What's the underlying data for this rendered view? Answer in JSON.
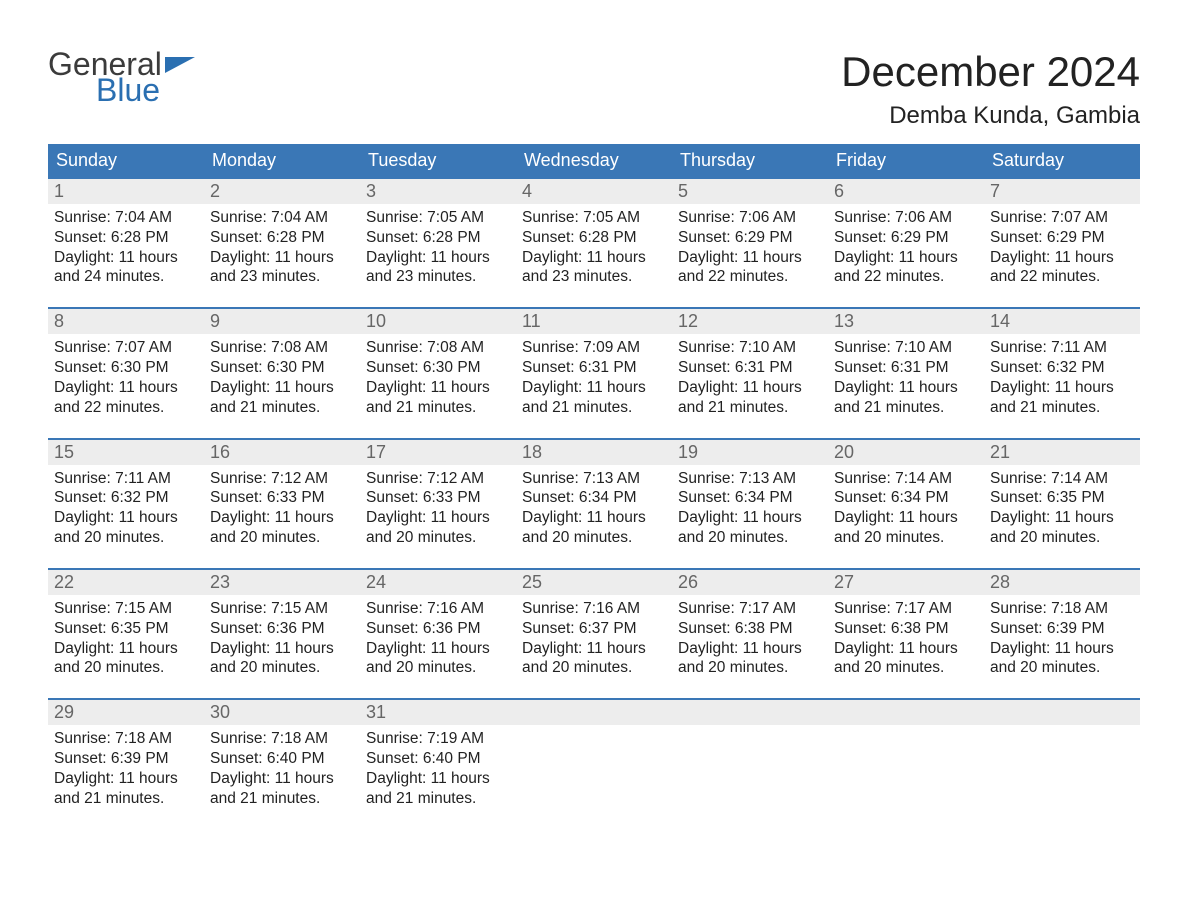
{
  "logo": {
    "text_general": "General",
    "text_blue": "Blue",
    "flag_color": "#2a6fb1",
    "general_color": "#3b3b3b"
  },
  "header": {
    "month_title": "December 2024",
    "location": "Demba Kunda, Gambia"
  },
  "styling": {
    "header_bg": "#3a77b6",
    "header_fg": "#ffffff",
    "daynum_bg": "#ededed",
    "daynum_fg": "#666666",
    "rule_color": "#3a77b6",
    "body_text_color": "#222222",
    "page_bg": "#ffffff",
    "month_title_fontsize": 42,
    "location_fontsize": 24,
    "weekday_fontsize": 18,
    "daynum_fontsize": 18,
    "body_fontsize": 15.5
  },
  "weekdays": [
    "Sunday",
    "Monday",
    "Tuesday",
    "Wednesday",
    "Thursday",
    "Friday",
    "Saturday"
  ],
  "labels": {
    "sunrise": "Sunrise:",
    "sunset": "Sunset:",
    "daylight": "Daylight:"
  },
  "days": [
    {
      "n": "1",
      "sunrise": "7:04 AM",
      "sunset": "6:28 PM",
      "daylight": "11 hours and 24 minutes."
    },
    {
      "n": "2",
      "sunrise": "7:04 AM",
      "sunset": "6:28 PM",
      "daylight": "11 hours and 23 minutes."
    },
    {
      "n": "3",
      "sunrise": "7:05 AM",
      "sunset": "6:28 PM",
      "daylight": "11 hours and 23 minutes."
    },
    {
      "n": "4",
      "sunrise": "7:05 AM",
      "sunset": "6:28 PM",
      "daylight": "11 hours and 23 minutes."
    },
    {
      "n": "5",
      "sunrise": "7:06 AM",
      "sunset": "6:29 PM",
      "daylight": "11 hours and 22 minutes."
    },
    {
      "n": "6",
      "sunrise": "7:06 AM",
      "sunset": "6:29 PM",
      "daylight": "11 hours and 22 minutes."
    },
    {
      "n": "7",
      "sunrise": "7:07 AM",
      "sunset": "6:29 PM",
      "daylight": "11 hours and 22 minutes."
    },
    {
      "n": "8",
      "sunrise": "7:07 AM",
      "sunset": "6:30 PM",
      "daylight": "11 hours and 22 minutes."
    },
    {
      "n": "9",
      "sunrise": "7:08 AM",
      "sunset": "6:30 PM",
      "daylight": "11 hours and 21 minutes."
    },
    {
      "n": "10",
      "sunrise": "7:08 AM",
      "sunset": "6:30 PM",
      "daylight": "11 hours and 21 minutes."
    },
    {
      "n": "11",
      "sunrise": "7:09 AM",
      "sunset": "6:31 PM",
      "daylight": "11 hours and 21 minutes."
    },
    {
      "n": "12",
      "sunrise": "7:10 AM",
      "sunset": "6:31 PM",
      "daylight": "11 hours and 21 minutes."
    },
    {
      "n": "13",
      "sunrise": "7:10 AM",
      "sunset": "6:31 PM",
      "daylight": "11 hours and 21 minutes."
    },
    {
      "n": "14",
      "sunrise": "7:11 AM",
      "sunset": "6:32 PM",
      "daylight": "11 hours and 21 minutes."
    },
    {
      "n": "15",
      "sunrise": "7:11 AM",
      "sunset": "6:32 PM",
      "daylight": "11 hours and 20 minutes."
    },
    {
      "n": "16",
      "sunrise": "7:12 AM",
      "sunset": "6:33 PM",
      "daylight": "11 hours and 20 minutes."
    },
    {
      "n": "17",
      "sunrise": "7:12 AM",
      "sunset": "6:33 PM",
      "daylight": "11 hours and 20 minutes."
    },
    {
      "n": "18",
      "sunrise": "7:13 AM",
      "sunset": "6:34 PM",
      "daylight": "11 hours and 20 minutes."
    },
    {
      "n": "19",
      "sunrise": "7:13 AM",
      "sunset": "6:34 PM",
      "daylight": "11 hours and 20 minutes."
    },
    {
      "n": "20",
      "sunrise": "7:14 AM",
      "sunset": "6:34 PM",
      "daylight": "11 hours and 20 minutes."
    },
    {
      "n": "21",
      "sunrise": "7:14 AM",
      "sunset": "6:35 PM",
      "daylight": "11 hours and 20 minutes."
    },
    {
      "n": "22",
      "sunrise": "7:15 AM",
      "sunset": "6:35 PM",
      "daylight": "11 hours and 20 minutes."
    },
    {
      "n": "23",
      "sunrise": "7:15 AM",
      "sunset": "6:36 PM",
      "daylight": "11 hours and 20 minutes."
    },
    {
      "n": "24",
      "sunrise": "7:16 AM",
      "sunset": "6:36 PM",
      "daylight": "11 hours and 20 minutes."
    },
    {
      "n": "25",
      "sunrise": "7:16 AM",
      "sunset": "6:37 PM",
      "daylight": "11 hours and 20 minutes."
    },
    {
      "n": "26",
      "sunrise": "7:17 AM",
      "sunset": "6:38 PM",
      "daylight": "11 hours and 20 minutes."
    },
    {
      "n": "27",
      "sunrise": "7:17 AM",
      "sunset": "6:38 PM",
      "daylight": "11 hours and 20 minutes."
    },
    {
      "n": "28",
      "sunrise": "7:18 AM",
      "sunset": "6:39 PM",
      "daylight": "11 hours and 20 minutes."
    },
    {
      "n": "29",
      "sunrise": "7:18 AM",
      "sunset": "6:39 PM",
      "daylight": "11 hours and 21 minutes."
    },
    {
      "n": "30",
      "sunrise": "7:18 AM",
      "sunset": "6:40 PM",
      "daylight": "11 hours and 21 minutes."
    },
    {
      "n": "31",
      "sunrise": "7:19 AM",
      "sunset": "6:40 PM",
      "daylight": "11 hours and 21 minutes."
    }
  ]
}
